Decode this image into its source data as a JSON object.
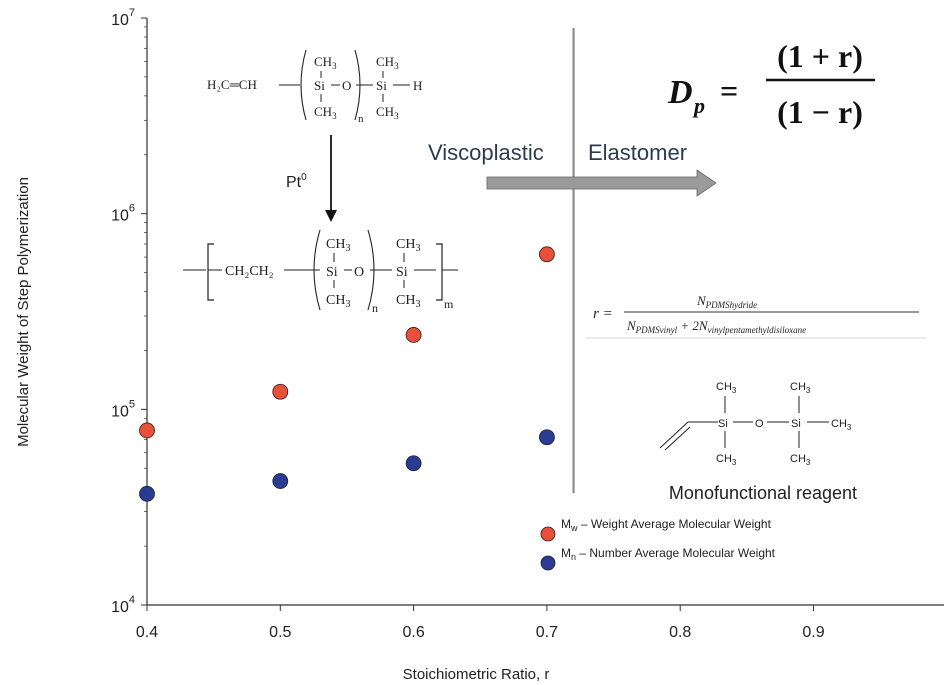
{
  "chart_data": {
    "type": "scatter",
    "xlabel": "Stoichiometric Ratio, r",
    "ylabel": "Molecular Weight of Step Polymerization",
    "xlim": [
      0.4,
      1.0
    ],
    "ylim": [
      10000,
      10000000
    ],
    "yscale": "log",
    "x_ticks": [
      "0.4",
      "0.5",
      "0.6",
      "0.7",
      "0.8",
      "0.9"
    ],
    "y_ticks": [
      {
        "base": "10",
        "exp": "4",
        "value": 10000
      },
      {
        "base": "10",
        "exp": "5",
        "value": 100000
      },
      {
        "base": "10",
        "exp": "6",
        "value": 1000000
      },
      {
        "base": "10",
        "exp": "7",
        "value": 10000000
      }
    ],
    "grid": false,
    "legend_position": "bottom-center",
    "series": [
      {
        "name": "Mw – Weight Average Molecular Weight",
        "legend_main": "M",
        "legend_sub": "w",
        "legend_rest": " – Weight Average Molecular Weight",
        "color": "#e8503a",
        "x": [
          0.4,
          0.5,
          0.6,
          0.7
        ],
        "y": [
          78000,
          123000,
          240000,
          620000
        ]
      },
      {
        "name": "Mn – Number Average Molecular Weight",
        "legend_main": "M",
        "legend_sub": "n",
        "legend_rest": " – Number Average Molecular Weight",
        "color": "#2a3b94",
        "x": [
          0.4,
          0.5,
          0.6,
          0.7
        ],
        "y": [
          37000,
          43000,
          53000,
          72000
        ]
      }
    ],
    "divider_x": 0.72,
    "annotations": {
      "region_left": "Viscoplastic",
      "region_right": "Elastomer",
      "catalyst": "Pt",
      "catalyst_sup": "0",
      "reagent_caption": "Monofunctional reagent"
    },
    "equations": {
      "dp_lhs": "D",
      "dp_sub": "p",
      "dp_eq": "=",
      "dp_num": "(1 + r)",
      "dp_den": "(1 − r)",
      "r_lhs": "r =",
      "r_num": "N",
      "r_num_sub": "PDMShydride",
      "r_den_a": "N",
      "r_den_a_sub": "PDMSvinyl",
      "r_den_plus": " + 2N",
      "r_den_b_sub": "vinylpentamethyldisiloxane"
    },
    "chemistry": {
      "monomer_left": "H₂C═CH",
      "ch3": "CH",
      "three": "3",
      "si": "Si",
      "o": "O",
      "h": "H",
      "n": "n",
      "m": "m",
      "ch2ch2": "CH₂CH₂"
    }
  }
}
